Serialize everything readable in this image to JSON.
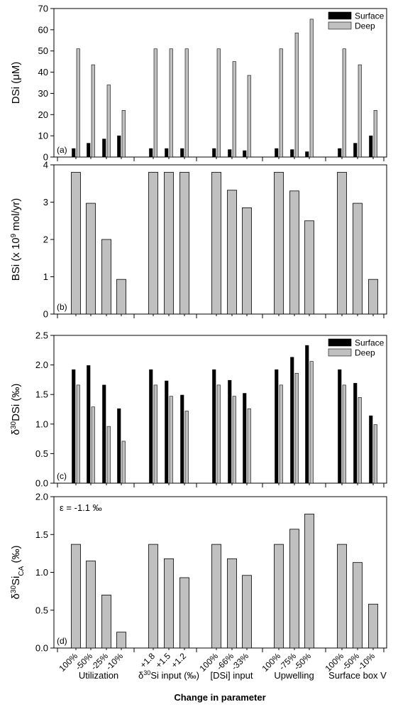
{
  "colors": {
    "surface": "#000000",
    "deep": "#c0c0c0",
    "single": "#c0c0c0",
    "axis": "#000000"
  },
  "x_tick_labels": [
    "100%",
    "-50%",
    "-25%",
    "-10%",
    "+1.8",
    "+1.5",
    "+1.2",
    "100%",
    "-66%",
    "-33%",
    "100%",
    "-75%",
    "-50%",
    "100%",
    "-50%",
    "-10%"
  ],
  "groups": [
    {
      "label": "Utilization",
      "indices": [
        0,
        1,
        2,
        3
      ]
    },
    {
      "label_pre": "δ",
      "label_sup": "30",
      "label_post": "Si input (‰)",
      "indices": [
        4,
        5,
        6
      ]
    },
    {
      "label": "[DSi] input",
      "indices": [
        7,
        8,
        9
      ]
    },
    {
      "label": "Upwelling",
      "indices": [
        10,
        11,
        12
      ]
    },
    {
      "label": "Surface box V",
      "indices": [
        13,
        14,
        15
      ]
    }
  ],
  "x_axis_title": "Change in parameter",
  "chart_data": [
    {
      "type": "bar",
      "panel_label": "(a)",
      "ylabel": {
        "pre": "DSi (",
        "mu": "μ",
        "post": "M)"
      },
      "ylim": [
        0,
        70
      ],
      "yticks": [
        0,
        10,
        20,
        30,
        40,
        50,
        60,
        70
      ],
      "legend": "top-right",
      "series": [
        {
          "name": "Surface",
          "color": "#000000",
          "values": [
            4,
            6.5,
            8.5,
            10,
            4,
            4,
            4,
            4,
            3.5,
            3,
            4,
            3.5,
            2.5,
            4,
            6.5,
            10
          ]
        },
        {
          "name": "Deep",
          "color": "#c0c0c0",
          "values": [
            51,
            43.5,
            34,
            22,
            51,
            51,
            51,
            51,
            45,
            38.5,
            51,
            58.5,
            65,
            51,
            43.5,
            22
          ]
        }
      ]
    },
    {
      "type": "bar",
      "panel_label": "(b)",
      "ylabel": {
        "pre": "BSi (x 10",
        "sup": "9",
        "post": " mol/yr)"
      },
      "ylim": [
        0,
        4
      ],
      "yticks": [
        0,
        1,
        2,
        3,
        4
      ],
      "series": [
        {
          "values": [
            3.8,
            2.97,
            2.0,
            0.93,
            3.8,
            3.8,
            3.8,
            3.8,
            3.32,
            2.85,
            3.8,
            3.3,
            2.5,
            3.8,
            2.97,
            0.93
          ]
        }
      ]
    },
    {
      "type": "bar",
      "panel_label": "(c)",
      "ylabel": {
        "pre": "δ",
        "sup": "30",
        "post": "DSi (‰)"
      },
      "ylim": [
        0,
        2.5
      ],
      "yticks": [
        "0.0",
        "0.5",
        "1.0",
        "1.5",
        "2.0",
        "2.5"
      ],
      "legend": "top-right",
      "series": [
        {
          "name": "Surface",
          "color": "#000000",
          "values": [
            1.92,
            1.99,
            1.66,
            1.26,
            1.92,
            1.73,
            1.49,
            1.92,
            1.74,
            1.52,
            1.92,
            2.13,
            2.33,
            1.92,
            1.69,
            1.14
          ]
        },
        {
          "name": "Deep",
          "color": "#c0c0c0",
          "values": [
            1.66,
            1.29,
            0.96,
            0.71,
            1.66,
            1.47,
            1.22,
            1.66,
            1.47,
            1.26,
            1.66,
            1.86,
            2.06,
            1.66,
            1.45,
            0.99
          ]
        }
      ]
    },
    {
      "type": "bar",
      "panel_label": "(d)",
      "ylabel": {
        "pre": "δ",
        "sup": "30",
        "mid": "Si",
        "sub": "CA",
        "post": " (‰)"
      },
      "ylim": [
        0,
        2.0
      ],
      "yticks": [
        "0.0",
        "0.5",
        "1.0",
        "1.5",
        "2.0"
      ],
      "annotation": "ε = -1.1 ‰",
      "series": [
        {
          "values": [
            1.37,
            1.15,
            0.7,
            0.21,
            1.37,
            1.18,
            0.93,
            1.37,
            1.18,
            0.96,
            1.37,
            1.57,
            1.77,
            1.37,
            1.13,
            0.58
          ]
        }
      ]
    }
  ]
}
